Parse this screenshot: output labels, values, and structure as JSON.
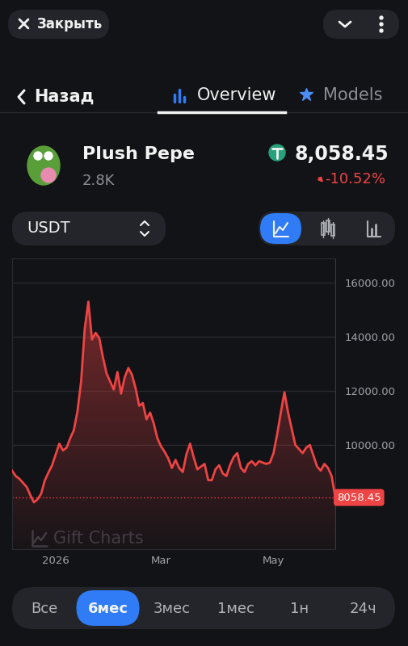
{
  "header": {
    "close": "Закрыть",
    "back": "Назад",
    "tabs": [
      "Overview",
      "Models"
    ],
    "active_tab": "Overview"
  },
  "token": {
    "name": "Plush Pepe",
    "count": "2.8K",
    "price": "8,058.45",
    "change": "-10.52%"
  },
  "currency": "USDT",
  "chart_data": {
    "type": "line",
    "categories": [
      null,
      null,
      null,
      null,
      null,
      null,
      null,
      null,
      null,
      null,
      null,
      null,
      "2026",
      null,
      null,
      null,
      null,
      null,
      null,
      null,
      null,
      null,
      null,
      null,
      null,
      null,
      null,
      null,
      null,
      null,
      null,
      null,
      null,
      null,
      null,
      null,
      null,
      null,
      null,
      null,
      null,
      "Mar",
      null,
      null,
      null,
      null,
      null,
      null,
      null,
      null,
      null,
      null,
      null,
      null,
      null,
      null,
      null,
      null,
      null,
      null,
      null,
      null,
      null,
      null,
      null,
      null,
      null,
      null,
      null,
      null,
      null,
      null,
      "May",
      null,
      null,
      null,
      null,
      null,
      null,
      null,
      null,
      null,
      null,
      null,
      null,
      null,
      null,
      null,
      null,
      null
    ],
    "values": [
      9050,
      8850,
      8750,
      8600,
      8450,
      8150,
      7880,
      7990,
      8200,
      8690,
      8980,
      9250,
      9650,
      10050,
      9800,
      9900,
      10250,
      10550,
      11250,
      12350,
      14300,
      15300,
      13900,
      14150,
      13950,
      13250,
      12650,
      12350,
      12050,
      12700,
      11900,
      12500,
      12850,
      12600,
      12100,
      11450,
      11550,
      10950,
      11200,
      10800,
      10250,
      9950,
      9750,
      9500,
      9150,
      9450,
      9150,
      9000,
      9650,
      10050,
      9550,
      9100,
      9200,
      9300,
      8700,
      8700,
      9100,
      9250,
      8950,
      8850,
      9250,
      9550,
      9700,
      9150,
      9000,
      9300,
      9400,
      9250,
      9400,
      9350,
      9300,
      9350,
      9700,
      10400,
      11200,
      11950,
      11200,
      10600,
      10000,
      9850,
      9700,
      9900,
      10000,
      9600,
      9200,
      9050,
      9300,
      9150,
      8850,
      8058.45
    ],
    "color": "#ef4444",
    "ylim": [
      6150,
      16900
    ],
    "yticks": [
      {
        "value": 10000,
        "label": "10000.00"
      },
      {
        "value": 12000,
        "label": "12000.00"
      },
      {
        "value": 14000,
        "label": "14000.00"
      },
      {
        "value": 16000,
        "label": "16000.00"
      }
    ],
    "grid": true,
    "annotations": [
      {
        "text": "8058.45",
        "y": 8058.45
      }
    ]
  },
  "watermark": "Gift Charts",
  "periods": [
    "Все",
    "6мес",
    "3мес",
    "1мес",
    "1н",
    "24ч"
  ],
  "active_period": "6мес"
}
